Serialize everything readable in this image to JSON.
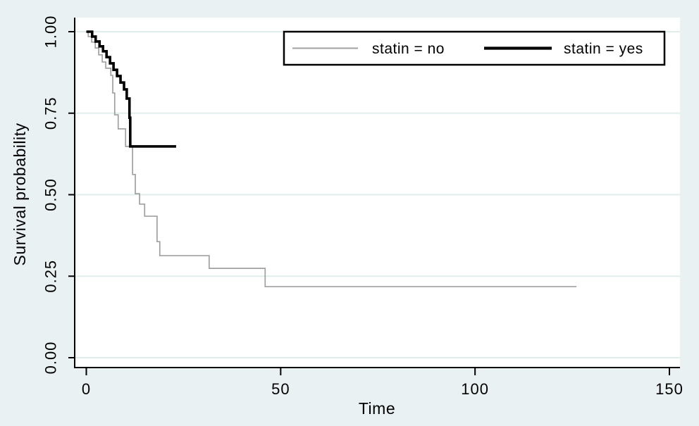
{
  "figure": {
    "background": "#eaf1f3",
    "plot_bg": "#ffffff",
    "grid_color": "#e0edec",
    "axis_color": "#000000",
    "text_color": "#000000"
  },
  "chart_data": {
    "type": "line",
    "subtype": "kaplan-meier-step-survival",
    "title": "",
    "xlabel": "Time",
    "ylabel": "Survival probability",
    "xlim": [
      0,
      150
    ],
    "ylim": [
      0,
      1
    ],
    "grid": true,
    "legend_position": "top-center-inside",
    "xticks": [
      {
        "v": 0,
        "label": "0"
      },
      {
        "v": 50,
        "label": "50"
      },
      {
        "v": 100,
        "label": "100"
      },
      {
        "v": 150,
        "label": "150"
      }
    ],
    "yticks": [
      {
        "v": 0.0,
        "label": "0.00"
      },
      {
        "v": 0.25,
        "label": "0.25"
      },
      {
        "v": 0.5,
        "label": "0.50"
      },
      {
        "v": 0.75,
        "label": "0.75"
      },
      {
        "v": 1.0,
        "label": "1.00"
      }
    ],
    "series": [
      {
        "name": "statin = no",
        "color": "#a0a0a0",
        "width": 1.7,
        "points": [
          [
            0,
            1.0
          ],
          [
            0.5,
            0.985
          ],
          [
            1.4,
            0.968
          ],
          [
            2.3,
            0.95
          ],
          [
            3.2,
            0.929
          ],
          [
            4.1,
            0.907
          ],
          [
            5.0,
            0.888
          ],
          [
            6.3,
            0.866
          ],
          [
            6.8,
            0.812
          ],
          [
            7.3,
            0.745
          ],
          [
            8.2,
            0.702
          ],
          [
            10.1,
            0.648
          ],
          [
            11.9,
            0.562
          ],
          [
            12.6,
            0.503
          ],
          [
            13.7,
            0.471
          ],
          [
            15.0,
            0.434
          ],
          [
            18.2,
            0.356
          ],
          [
            18.9,
            0.313
          ],
          [
            31.6,
            0.274
          ],
          [
            46.0,
            0.218
          ],
          [
            126.1,
            0.218
          ]
        ]
      },
      {
        "name": "statin = yes",
        "color": "#000000",
        "width": 3.6,
        "points": [
          [
            0,
            1.0
          ],
          [
            1.5,
            0.985
          ],
          [
            2.4,
            0.97
          ],
          [
            3.4,
            0.955
          ],
          [
            4.3,
            0.94
          ],
          [
            5.2,
            0.922
          ],
          [
            6.1,
            0.903
          ],
          [
            7.0,
            0.883
          ],
          [
            7.9,
            0.864
          ],
          [
            8.8,
            0.844
          ],
          [
            9.7,
            0.823
          ],
          [
            10.4,
            0.795
          ],
          [
            11.1,
            0.736
          ],
          [
            11.3,
            0.648
          ],
          [
            23.1,
            0.648
          ]
        ]
      }
    ]
  }
}
